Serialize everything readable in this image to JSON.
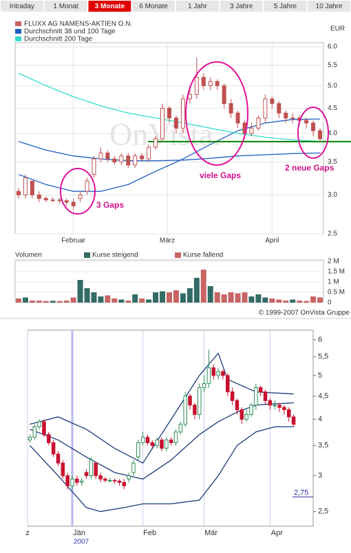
{
  "tabs": [
    {
      "label": "Intraday"
    },
    {
      "label": "1 Monat"
    },
    {
      "label": "3 Monate",
      "active": true
    },
    {
      "label": "6 Monate"
    },
    {
      "label": "1 Jahr"
    },
    {
      "label": "3 Jahre"
    },
    {
      "label": "5 Jahre"
    },
    {
      "label": "10 Jahre"
    }
  ],
  "chart_data": [
    {
      "type": "candlestick",
      "currency": "EUR",
      "watermark": "OnVista.",
      "copyright": "© 1999-2007 OnVista Gruppe",
      "log_scale": true,
      "grid": true,
      "legend": [
        {
          "label": "FLUXX AG NAMENS-AKTIEN O.N.",
          "color": "#c86464"
        },
        {
          "label": "Durchschnitt 38 und 100 Tage",
          "color": "#1f5fbf"
        },
        {
          "label": "Durchschnitt 200 Tage",
          "color": "#33ddcc"
        }
      ],
      "xlim": [
        -0.5,
        44.5
      ],
      "xticks": [
        {
          "value": 8,
          "label": "Februar"
        },
        {
          "value": 21.7,
          "label": "März"
        },
        {
          "value": 37,
          "label": "April"
        }
      ],
      "ylim": [
        2.5,
        6.0
      ],
      "yticks": [
        {
          "value": 6,
          "label": "6.0"
        },
        5.5,
        {
          "value": 5,
          "label": "5.0"
        },
        4.5,
        {
          "value": 4,
          "label": "4.0"
        },
        3.5,
        {
          "value": 3,
          "label": "3.0"
        },
        2.5
      ],
      "color": "#c05050",
      "open": [
        3.05,
        3.0,
        3.2,
        3.0,
        2.95,
        2.93,
        2.93,
        2.92,
        2.9,
        2.95,
        3.05,
        3.3,
        3.55,
        3.65,
        3.55,
        3.5,
        3.6,
        3.45,
        3.6,
        3.55,
        3.75,
        3.9,
        4.5,
        4.3,
        4.1,
        4.7,
        4.8,
        5.2,
        5.0,
        5.1,
        5.0,
        4.6,
        4.4,
        4.2,
        4.0,
        4.1,
        4.3,
        4.7,
        4.6,
        4.4,
        4.3,
        4.3,
        4.25,
        4.2,
        4.05
      ],
      "high": [
        3.1,
        3.3,
        3.2,
        3.05,
        2.98,
        2.97,
        2.96,
        2.95,
        2.95,
        3.05,
        3.25,
        3.6,
        3.75,
        3.7,
        3.6,
        3.65,
        3.65,
        3.65,
        3.65,
        3.8,
        3.95,
        4.6,
        4.55,
        4.35,
        4.8,
        5.0,
        5.7,
        5.3,
        5.2,
        5.15,
        5.05,
        4.7,
        4.45,
        4.25,
        4.2,
        4.35,
        4.8,
        4.75,
        4.65,
        4.45,
        4.4,
        4.35,
        4.3,
        4.25,
        4.1
      ],
      "low": [
        2.95,
        2.95,
        2.95,
        2.9,
        2.9,
        2.9,
        2.88,
        2.85,
        2.8,
        2.9,
        3.0,
        3.25,
        3.5,
        3.5,
        3.45,
        3.45,
        3.4,
        3.4,
        3.5,
        3.5,
        3.7,
        3.85,
        4.2,
        4.0,
        4.0,
        4.6,
        4.7,
        4.9,
        4.9,
        4.9,
        4.5,
        4.3,
        4.1,
        3.9,
        3.95,
        4.05,
        4.2,
        4.5,
        4.3,
        4.2,
        4.2,
        4.15,
        4.1,
        3.95,
        3.85
      ],
      "close": [
        3.0,
        3.25,
        3.0,
        2.95,
        2.93,
        2.93,
        2.92,
        2.9,
        2.85,
        3.0,
        3.2,
        3.55,
        3.65,
        3.55,
        3.5,
        3.6,
        3.45,
        3.6,
        3.55,
        3.75,
        3.9,
        4.5,
        4.3,
        4.1,
        4.7,
        4.8,
        5.2,
        5.0,
        5.1,
        5.0,
        4.6,
        4.4,
        4.2,
        4.0,
        4.1,
        4.3,
        4.7,
        4.6,
        4.4,
        4.3,
        4.3,
        4.25,
        4.2,
        4.05,
        3.9
      ],
      "lines": [
        {
          "color": "#1f5fbf",
          "x": [
            0,
            4,
            8,
            12,
            16,
            20,
            24,
            28,
            32,
            36,
            40,
            44
          ],
          "values": [
            3.85,
            3.7,
            3.6,
            3.55,
            3.52,
            3.52,
            3.53,
            3.56,
            3.6,
            3.62,
            3.64,
            3.65
          ]
        },
        {
          "color": "#1f5fbf",
          "x": [
            0,
            4,
            8,
            12,
            16,
            20,
            24,
            28,
            32,
            36,
            40,
            44
          ],
          "values": [
            3.3,
            3.15,
            3.05,
            3.05,
            3.15,
            3.35,
            3.55,
            3.8,
            4.05,
            4.2,
            4.27,
            4.28
          ]
        },
        {
          "color": "#33ddcc",
          "x": [
            0,
            4,
            8,
            12,
            16,
            20,
            24,
            28,
            32,
            36,
            40,
            44
          ],
          "values": [
            5.3,
            5.0,
            4.75,
            4.55,
            4.4,
            4.3,
            4.2,
            4.1,
            4.0,
            3.93,
            3.88,
            3.85
          ]
        }
      ],
      "reference_line": {
        "value": 3.85,
        "color": "#008000"
      },
      "annotations": [
        {
          "text": "3 Gaps"
        },
        {
          "text": "viele Gaps"
        },
        {
          "text": "2 neue Gaps"
        }
      ],
      "volume": {
        "title": "Volumen",
        "rising_label": "Kurse steigend",
        "rising_color": "#336b66",
        "falling_label": "Kurse fallend",
        "falling_color": "#c86464",
        "ylim": [
          0,
          2000000
        ],
        "yticks": [
          0,
          {
            "value": 500000,
            "label": "0.5 M"
          },
          {
            "value": 1000000,
            "label": "1 M"
          },
          {
            "value": 1500000,
            "label": "1.5 M"
          },
          {
            "value": 2000000,
            "label": "2 M"
          }
        ],
        "values": [
          200000,
          250000,
          100000,
          100000,
          80000,
          90000,
          80000,
          100000,
          250000,
          1100000,
          700000,
          500000,
          300000,
          350000,
          200000,
          150000,
          100000,
          400000,
          200000,
          150000,
          500000,
          550000,
          500000,
          600000,
          450000,
          700000,
          1200000,
          1600000,
          800000,
          500000,
          400000,
          500000,
          450000,
          500000,
          300000,
          400000,
          250000,
          200000,
          150000,
          100000,
          150000,
          100000,
          80000,
          300000,
          250000
        ]
      }
    },
    {
      "type": "candlestick",
      "log_scale": true,
      "xlim": [
        -0.5,
        56.5
      ],
      "year_label": "2007",
      "xticks": [
        {
          "value": -0.5,
          "label": "z"
        },
        {
          "value": 9,
          "label": "Jän"
        },
        {
          "value": 24,
          "label": "Feb"
        },
        {
          "value": 37,
          "label": "Mär"
        },
        {
          "value": 51,
          "label": "Apr"
        }
      ],
      "ylim": [
        2.32,
        6.3
      ],
      "yticks": [
        6,
        {
          "value": 5.5,
          "label": "5,5"
        },
        5,
        {
          "value": 4.5,
          "label": "4,5"
        },
        4,
        {
          "value": 3.5,
          "label": "3,5"
        },
        3,
        {
          "value": 2.5,
          "label": "2,5"
        }
      ],
      "marker": {
        "value": 2.75,
        "label": "2,75"
      },
      "rising_color": "#2e8b57",
      "falling_color": "#c8102e",
      "open": [
        3.6,
        3.65,
        3.85,
        3.95,
        3.7,
        3.55,
        3.35,
        3.2,
        3.0,
        2.85,
        2.95,
        2.9,
        3.05,
        3.0,
        3.2,
        3.0,
        2.95,
        2.93,
        2.93,
        2.92,
        2.9,
        2.95,
        3.05,
        3.3,
        3.55,
        3.65,
        3.55,
        3.5,
        3.6,
        3.45,
        3.6,
        3.55,
        3.75,
        3.9,
        4.5,
        4.3,
        4.1,
        4.7,
        4.8,
        5.2,
        5.0,
        5.1,
        5.0,
        4.6,
        4.4,
        4.2,
        4.0,
        4.1,
        4.3,
        4.7,
        4.6,
        4.4,
        4.3,
        4.3,
        4.25,
        4.2,
        4.05
      ],
      "high": [
        3.7,
        3.9,
        4.0,
        4.0,
        3.75,
        3.6,
        3.4,
        3.25,
        3.05,
        3.0,
        3.0,
        2.97,
        3.1,
        3.3,
        3.2,
        3.05,
        2.98,
        2.97,
        2.96,
        2.95,
        2.95,
        3.05,
        3.25,
        3.6,
        3.75,
        3.7,
        3.6,
        3.65,
        3.65,
        3.65,
        3.65,
        3.8,
        3.95,
        4.6,
        4.55,
        4.35,
        4.8,
        5.0,
        5.7,
        5.3,
        5.2,
        5.15,
        5.05,
        4.7,
        4.45,
        4.25,
        4.2,
        4.35,
        4.8,
        4.75,
        4.65,
        4.45,
        4.4,
        4.35,
        4.3,
        4.25,
        4.1
      ],
      "low": [
        3.55,
        3.6,
        3.8,
        3.65,
        3.5,
        3.3,
        3.15,
        2.95,
        2.8,
        2.8,
        2.85,
        2.85,
        2.95,
        2.95,
        2.95,
        2.9,
        2.9,
        2.9,
        2.88,
        2.85,
        2.8,
        2.9,
        3.0,
        3.25,
        3.5,
        3.5,
        3.45,
        3.45,
        3.4,
        3.4,
        3.5,
        3.5,
        3.7,
        3.85,
        4.2,
        4.0,
        4.0,
        4.6,
        4.7,
        4.9,
        4.9,
        4.9,
        4.5,
        4.3,
        4.1,
        3.9,
        3.95,
        4.05,
        4.2,
        4.5,
        4.3,
        4.2,
        4.2,
        4.15,
        4.1,
        3.95,
        3.85
      ],
      "close": [
        3.65,
        3.85,
        3.95,
        3.7,
        3.55,
        3.35,
        3.2,
        3.0,
        2.85,
        2.95,
        2.9,
        2.92,
        3.0,
        3.25,
        3.0,
        2.95,
        2.93,
        2.93,
        2.92,
        2.9,
        2.85,
        3.0,
        3.2,
        3.55,
        3.65,
        3.55,
        3.5,
        3.6,
        3.45,
        3.6,
        3.55,
        3.75,
        3.9,
        4.5,
        4.3,
        4.1,
        4.7,
        4.8,
        5.2,
        5.0,
        5.1,
        5.0,
        4.6,
        4.4,
        4.2,
        4.0,
        4.1,
        4.3,
        4.7,
        4.6,
        4.4,
        4.3,
        4.3,
        4.25,
        4.2,
        4.05,
        3.9
      ],
      "lines": [
        {
          "color": "#1a3a7a",
          "x": [
            0,
            6,
            12,
            18,
            24,
            30,
            36,
            40,
            42,
            48,
            56
          ],
          "values": [
            3.9,
            4.05,
            3.8,
            3.45,
            3.2,
            4.0,
            5.0,
            5.6,
            4.9,
            4.6,
            4.55
          ]
        },
        {
          "color": "#1a3a7a",
          "x": [
            0,
            6,
            12,
            18,
            24,
            30,
            36,
            40,
            44,
            48,
            52,
            56
          ],
          "values": [
            3.8,
            3.6,
            3.3,
            3.05,
            2.95,
            3.25,
            3.7,
            3.95,
            4.15,
            4.3,
            4.33,
            4.35
          ]
        },
        {
          "color": "#1a3a7a",
          "x": [
            0,
            6,
            12,
            15,
            20,
            24,
            30,
            36,
            40,
            44,
            48,
            52,
            56
          ],
          "values": [
            3.5,
            3.0,
            2.55,
            2.5,
            2.55,
            2.6,
            2.6,
            2.65,
            3.0,
            3.5,
            3.75,
            3.85,
            3.85
          ]
        }
      ]
    }
  ]
}
